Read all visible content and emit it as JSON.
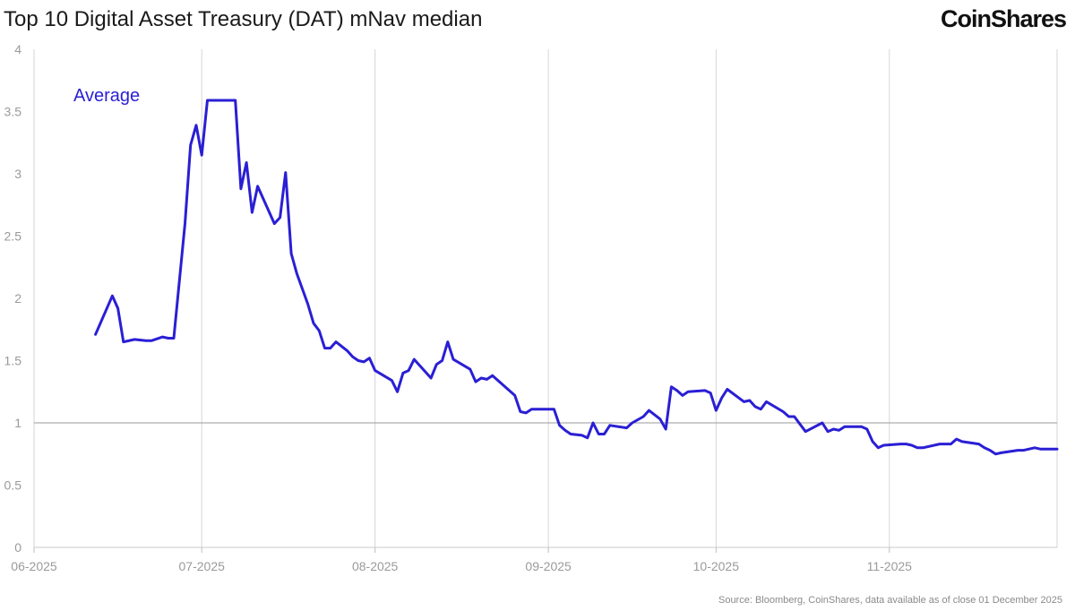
{
  "header": {
    "title": "Top 10 Digital Asset Treasury (DAT) mNav median",
    "logo_text": "CoinShares"
  },
  "footer": {
    "source": "Source: Bloomberg, CoinShares, data available as of close 01 December 2025"
  },
  "colors": {
    "series": "#2a1fd4",
    "grid": "#d6d6d6",
    "reference": "#9a9a9a"
  },
  "chart_data": {
    "type": "line",
    "title": "Top 10 Digital Asset Treasury (DAT) mNav median",
    "xlabel": "",
    "ylabel": "",
    "x_ticks": [
      {
        "label": "06-2025",
        "date": "2025-06-01"
      },
      {
        "label": "07-2025",
        "date": "2025-07-01"
      },
      {
        "label": "08-2025",
        "date": "2025-08-01"
      },
      {
        "label": "09-2025",
        "date": "2025-09-01"
      },
      {
        "label": "10-2025",
        "date": "2025-10-01"
      },
      {
        "label": "11-2025",
        "date": "2025-11-01"
      }
    ],
    "xlim": [
      "2025-06-01",
      "2025-12-01"
    ],
    "ylim": [
      0,
      4
    ],
    "y_ticks": [
      0,
      0.5,
      1,
      1.5,
      2,
      2.5,
      3,
      3.5,
      4
    ],
    "y_tick_labels": [
      "0",
      "0.5",
      "1",
      "1.5",
      "2",
      "2.5",
      "3",
      "3.5",
      "4"
    ],
    "reference_line": 1,
    "grid": "vertical",
    "legend_position": "top-left",
    "series": [
      {
        "name": "Average",
        "points": [
          [
            "2025-06-12",
            1.71
          ],
          [
            "2025-06-15",
            2.02
          ],
          [
            "2025-06-16",
            1.92
          ],
          [
            "2025-06-17",
            1.65
          ],
          [
            "2025-06-19",
            1.67
          ],
          [
            "2025-06-21",
            1.66
          ],
          [
            "2025-06-22",
            1.66
          ],
          [
            "2025-06-24",
            1.69
          ],
          [
            "2025-06-25",
            1.68
          ],
          [
            "2025-06-26",
            1.68
          ],
          [
            "2025-06-28",
            2.6
          ],
          [
            "2025-06-29",
            3.23
          ],
          [
            "2025-06-30",
            3.39
          ],
          [
            "2025-07-01",
            3.15
          ],
          [
            "2025-07-02",
            3.59
          ],
          [
            "2025-07-07",
            3.59
          ],
          [
            "2025-07-08",
            2.88
          ],
          [
            "2025-07-09",
            3.09
          ],
          [
            "2025-07-10",
            2.69
          ],
          [
            "2025-07-11",
            2.9
          ],
          [
            "2025-07-14",
            2.6
          ],
          [
            "2025-07-15",
            2.65
          ],
          [
            "2025-07-16",
            3.01
          ],
          [
            "2025-07-17",
            2.36
          ],
          [
            "2025-07-18",
            2.2
          ],
          [
            "2025-07-20",
            1.95
          ],
          [
            "2025-07-21",
            1.8
          ],
          [
            "2025-07-22",
            1.74
          ],
          [
            "2025-07-23",
            1.6
          ],
          [
            "2025-07-24",
            1.6
          ],
          [
            "2025-07-25",
            1.65
          ],
          [
            "2025-07-27",
            1.58
          ],
          [
            "2025-07-28",
            1.53
          ],
          [
            "2025-07-29",
            1.5
          ],
          [
            "2025-07-30",
            1.49
          ],
          [
            "2025-07-31",
            1.52
          ],
          [
            "2025-08-01",
            1.42
          ],
          [
            "2025-08-04",
            1.34
          ],
          [
            "2025-08-05",
            1.25
          ],
          [
            "2025-08-06",
            1.4
          ],
          [
            "2025-08-07",
            1.42
          ],
          [
            "2025-08-08",
            1.51
          ],
          [
            "2025-08-09",
            1.46
          ],
          [
            "2025-08-11",
            1.36
          ],
          [
            "2025-08-12",
            1.47
          ],
          [
            "2025-08-13",
            1.5
          ],
          [
            "2025-08-14",
            1.65
          ],
          [
            "2025-08-15",
            1.51
          ],
          [
            "2025-08-18",
            1.43
          ],
          [
            "2025-08-19",
            1.33
          ],
          [
            "2025-08-20",
            1.36
          ],
          [
            "2025-08-21",
            1.35
          ],
          [
            "2025-08-22",
            1.38
          ],
          [
            "2025-08-26",
            1.22
          ],
          [
            "2025-08-27",
            1.09
          ],
          [
            "2025-08-28",
            1.08
          ],
          [
            "2025-08-29",
            1.11
          ],
          [
            "2025-09-01",
            1.11
          ],
          [
            "2025-09-02",
            1.11
          ],
          [
            "2025-09-03",
            0.98
          ],
          [
            "2025-09-04",
            0.94
          ],
          [
            "2025-09-05",
            0.91
          ],
          [
            "2025-09-07",
            0.9
          ],
          [
            "2025-09-08",
            0.88
          ],
          [
            "2025-09-09",
            1.0
          ],
          [
            "2025-09-10",
            0.91
          ],
          [
            "2025-09-11",
            0.91
          ],
          [
            "2025-09-12",
            0.98
          ],
          [
            "2025-09-15",
            0.96
          ],
          [
            "2025-09-16",
            1.0
          ],
          [
            "2025-09-18",
            1.05
          ],
          [
            "2025-09-19",
            1.1
          ],
          [
            "2025-09-21",
            1.03
          ],
          [
            "2025-09-22",
            0.95
          ],
          [
            "2025-09-23",
            1.29
          ],
          [
            "2025-09-24",
            1.26
          ],
          [
            "2025-09-25",
            1.22
          ],
          [
            "2025-09-26",
            1.25
          ],
          [
            "2025-09-29",
            1.26
          ],
          [
            "2025-09-30",
            1.24
          ],
          [
            "2025-10-01",
            1.1
          ],
          [
            "2025-10-02",
            1.2
          ],
          [
            "2025-10-03",
            1.27
          ],
          [
            "2025-10-06",
            1.17
          ],
          [
            "2025-10-07",
            1.18
          ],
          [
            "2025-10-08",
            1.13
          ],
          [
            "2025-10-09",
            1.11
          ],
          [
            "2025-10-10",
            1.17
          ],
          [
            "2025-10-13",
            1.09
          ],
          [
            "2025-10-14",
            1.05
          ],
          [
            "2025-10-15",
            1.05
          ],
          [
            "2025-10-17",
            0.93
          ],
          [
            "2025-10-20",
            1.0
          ],
          [
            "2025-10-21",
            0.93
          ],
          [
            "2025-10-22",
            0.95
          ],
          [
            "2025-10-23",
            0.94
          ],
          [
            "2025-10-24",
            0.97
          ],
          [
            "2025-10-27",
            0.97
          ],
          [
            "2025-10-28",
            0.95
          ],
          [
            "2025-10-29",
            0.85
          ],
          [
            "2025-10-30",
            0.8
          ],
          [
            "2025-10-31",
            0.82
          ],
          [
            "2025-11-03",
            0.83
          ],
          [
            "2025-11-04",
            0.83
          ],
          [
            "2025-11-05",
            0.82
          ],
          [
            "2025-11-06",
            0.8
          ],
          [
            "2025-11-07",
            0.8
          ],
          [
            "2025-11-10",
            0.83
          ],
          [
            "2025-11-11",
            0.83
          ],
          [
            "2025-11-12",
            0.83
          ],
          [
            "2025-11-13",
            0.87
          ],
          [
            "2025-11-14",
            0.85
          ],
          [
            "2025-11-17",
            0.83
          ],
          [
            "2025-11-18",
            0.8
          ],
          [
            "2025-11-19",
            0.78
          ],
          [
            "2025-11-20",
            0.75
          ],
          [
            "2025-11-21",
            0.76
          ],
          [
            "2025-11-24",
            0.78
          ],
          [
            "2025-11-25",
            0.78
          ],
          [
            "2025-11-26",
            0.79
          ],
          [
            "2025-11-27",
            0.8
          ],
          [
            "2025-11-28",
            0.79
          ],
          [
            "2025-12-01",
            0.79
          ]
        ]
      }
    ]
  }
}
